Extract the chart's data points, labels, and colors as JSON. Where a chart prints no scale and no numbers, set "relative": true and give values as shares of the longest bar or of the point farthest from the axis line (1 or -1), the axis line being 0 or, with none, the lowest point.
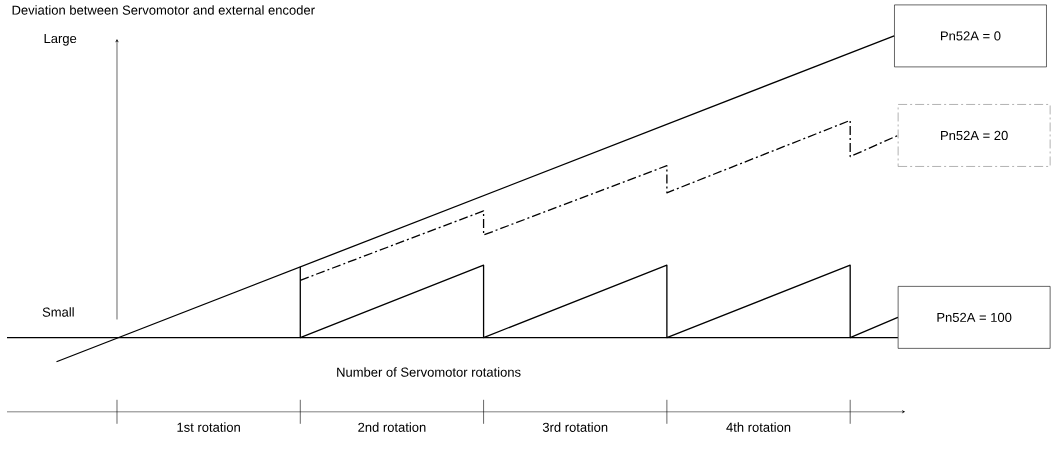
{
  "chart_data": {
    "type": "line",
    "relative": true,
    "ylabel": "Deviation between Servomotor and external encoder",
    "xlabel": "Number of Servomotor rotations",
    "annotations": [
      "Large",
      "Small"
    ],
    "xlim": [
      -0.6,
      4.3
    ],
    "xticks": [
      {
        "value": 0.5,
        "label": "1st rotation"
      },
      {
        "value": 1.5,
        "label": "2nd rotation"
      },
      {
        "value": 2.5,
        "label": "3rd rotation"
      },
      {
        "value": 3.5,
        "label": "4th rotation"
      }
    ],
    "series": [
      {
        "name": "Pn52A = 0",
        "color": "#000000",
        "line_style": "solid",
        "x": [
          -0.33,
          4.24
        ],
        "values": [
          -0.08,
          1.0
        ]
      },
      {
        "name": "Pn52A = 20",
        "color": "#000000",
        "line_style": "dashdot",
        "x": [
          1,
          2,
          2,
          3,
          3,
          4,
          4,
          4.26
        ],
        "values": [
          0.19,
          0.42,
          0.34,
          0.57,
          0.48,
          0.72,
          0.6,
          0.67
        ]
      },
      {
        "name": "Pn52A = 100",
        "color": "#000000",
        "line_style": "solid",
        "x": [
          1,
          1,
          2,
          2,
          3,
          3,
          4,
          4,
          4.26
        ],
        "values": [
          0.235,
          0,
          0.24,
          0,
          0.24,
          0,
          0.24,
          0,
          0.067
        ]
      }
    ]
  }
}
